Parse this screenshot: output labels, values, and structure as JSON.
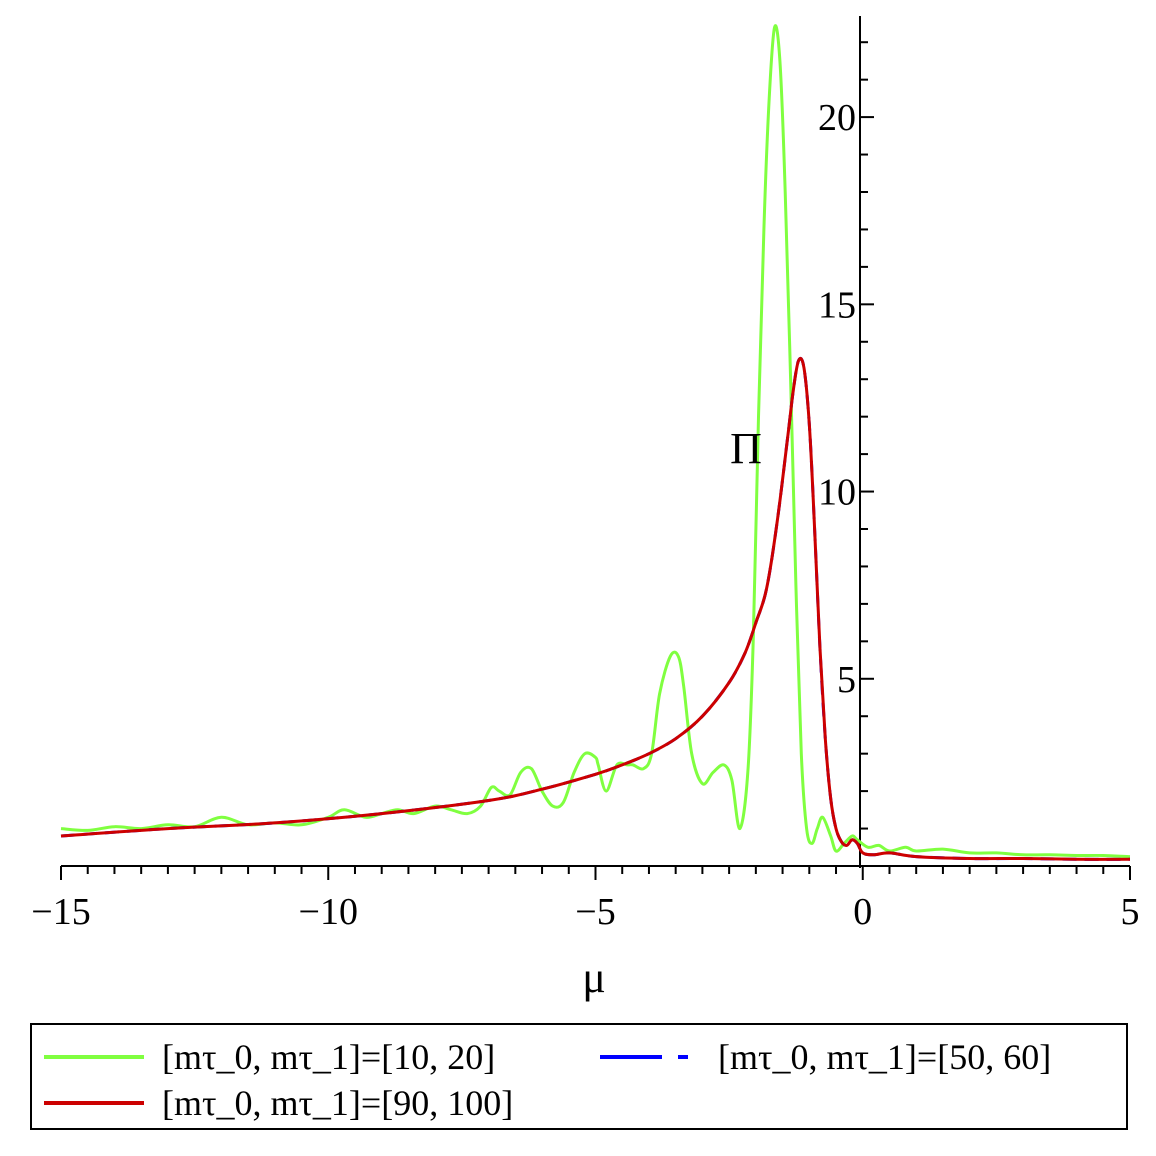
{
  "chart_data": {
    "type": "line",
    "title": "",
    "xlabel": "μ",
    "ylabel": "Π",
    "xlim": [
      -15,
      5
    ],
    "ylim": [
      0,
      22.7
    ],
    "x_ticks": [
      -15,
      -10,
      -5,
      0,
      5
    ],
    "x_tick_labels": [
      "−15",
      "−10",
      "−5",
      "0",
      "5"
    ],
    "y_ticks": [
      5,
      10,
      15,
      20
    ],
    "y_tick_labels": [
      "5",
      "10",
      "15",
      "20"
    ],
    "grid": false,
    "legend_placement": "bottom",
    "series": [
      {
        "name": "[mτ_0, mτ_1]=[10, 20]",
        "color": "#80ff40",
        "dash": "solid",
        "x": [
          -15,
          -14.5,
          -14,
          -13.5,
          -13,
          -12.5,
          -12,
          -11.5,
          -11,
          -10.5,
          -10,
          -9.7,
          -9.3,
          -9,
          -8.7,
          -8.4,
          -8,
          -7.7,
          -7.4,
          -7.15,
          -6.95,
          -6.8,
          -6.6,
          -6.4,
          -6.2,
          -6.0,
          -5.8,
          -5.6,
          -5.4,
          -5.2,
          -5.0,
          -4.95,
          -4.8,
          -4.6,
          -4.4,
          -4.3,
          -4.1,
          -3.95,
          -3.8,
          -3.6,
          -3.45,
          -3.35,
          -3.2,
          -3.0,
          -2.8,
          -2.6,
          -2.45,
          -2.3,
          -2.15,
          -2.05,
          -1.95,
          -1.85,
          -1.75,
          -1.65,
          -1.55,
          -1.45,
          -1.35,
          -1.25,
          -1.15,
          -1.05,
          -0.95,
          -0.85,
          -0.75,
          -0.6,
          -0.5,
          -0.35,
          -0.2,
          -0.1,
          0.1,
          0.3,
          0.5,
          0.8,
          1.0,
          1.5,
          2.0,
          2.5,
          3.0,
          3.5,
          4.0,
          4.5,
          5.0
        ],
        "y": [
          1.0,
          0.95,
          1.05,
          1.0,
          1.1,
          1.05,
          1.3,
          1.1,
          1.15,
          1.1,
          1.3,
          1.5,
          1.3,
          1.4,
          1.5,
          1.4,
          1.6,
          1.5,
          1.4,
          1.6,
          2.1,
          2.0,
          1.9,
          2.5,
          2.6,
          2.0,
          1.6,
          1.7,
          2.5,
          3.0,
          2.9,
          2.7,
          2.0,
          2.7,
          2.7,
          2.7,
          2.6,
          3.0,
          4.6,
          5.6,
          5.6,
          4.8,
          3.0,
          2.2,
          2.5,
          2.7,
          2.3,
          1.0,
          2.5,
          6.0,
          12.0,
          17.0,
          20.5,
          22.4,
          21.5,
          18.0,
          13.0,
          7.5,
          3.0,
          1.0,
          0.6,
          1.0,
          1.3,
          0.8,
          0.4,
          0.6,
          0.8,
          0.7,
          0.5,
          0.55,
          0.4,
          0.5,
          0.4,
          0.45,
          0.35,
          0.35,
          0.3,
          0.3,
          0.28,
          0.28,
          0.25
        ]
      },
      {
        "name": "[mτ_0, mτ_1]=[50, 60]",
        "color": "#0000ff",
        "dash": "dash",
        "x": [
          -15,
          -13,
          -11,
          -9,
          -7,
          -6,
          -5,
          -4.5,
          -4,
          -3.5,
          -3,
          -2.5,
          -2.2,
          -2.0,
          -1.8,
          -1.6,
          -1.4,
          -1.3,
          -1.2,
          -1.1,
          -1.0,
          -0.9,
          -0.8,
          -0.7,
          -0.6,
          -0.5,
          -0.4,
          -0.3,
          -0.2,
          -0.1,
          0,
          0.2,
          0.5,
          1.0,
          2.0,
          3.0,
          4.0,
          5.0
        ],
        "y": [
          0.8,
          1.0,
          1.15,
          1.4,
          1.75,
          2.05,
          2.45,
          2.7,
          3.0,
          3.4,
          4.0,
          4.9,
          5.7,
          6.5,
          7.4,
          9.2,
          11.5,
          12.7,
          13.5,
          13.3,
          11.8,
          9.0,
          5.8,
          3.4,
          1.8,
          1.0,
          0.65,
          0.55,
          0.7,
          0.6,
          0.35,
          0.3,
          0.35,
          0.25,
          0.2,
          0.2,
          0.18,
          0.18
        ]
      },
      {
        "name": "[mτ_0, mτ_1]=[90, 100]",
        "color": "#cc0000",
        "dash": "solid",
        "x": [
          -15,
          -13,
          -11,
          -9,
          -7,
          -6,
          -5,
          -4.5,
          -4,
          -3.5,
          -3,
          -2.5,
          -2.2,
          -2.0,
          -1.8,
          -1.6,
          -1.4,
          -1.3,
          -1.2,
          -1.1,
          -1.0,
          -0.9,
          -0.8,
          -0.7,
          -0.6,
          -0.5,
          -0.4,
          -0.3,
          -0.2,
          -0.1,
          0,
          0.2,
          0.5,
          1.0,
          2.0,
          3.0,
          4.0,
          5.0
        ],
        "y": [
          0.8,
          1.0,
          1.15,
          1.4,
          1.75,
          2.05,
          2.45,
          2.7,
          3.0,
          3.4,
          4.0,
          4.9,
          5.7,
          6.5,
          7.4,
          9.2,
          11.5,
          12.7,
          13.5,
          13.3,
          11.8,
          9.0,
          5.8,
          3.4,
          1.8,
          1.0,
          0.65,
          0.55,
          0.7,
          0.6,
          0.35,
          0.3,
          0.35,
          0.25,
          0.2,
          0.2,
          0.18,
          0.18
        ]
      }
    ]
  },
  "legend": {
    "items": [
      {
        "label": "[mτ_0, mτ_1]=[10, 20]",
        "color": "#80ff40"
      },
      {
        "label": "[mτ_0, mτ_1]=[50, 60]",
        "color": "#0000ff"
      },
      {
        "label": "[mτ_0, mτ_1]=[90, 100]",
        "color": "#cc0000"
      }
    ]
  }
}
